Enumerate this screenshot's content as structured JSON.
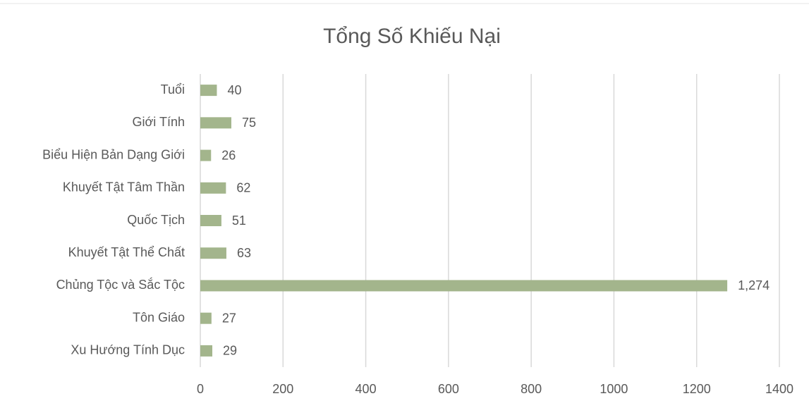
{
  "chart_data": {
    "type": "bar",
    "orientation": "horizontal",
    "title": "Tổng Số Khiếu Nại",
    "categories": [
      "Tuổi",
      "Giới Tính",
      "Biểu Hiện Bản Dạng Giới",
      "Khuyết Tật Tâm Thần",
      "Quốc Tịch",
      "Khuyết Tật Thể Chất",
      "Chủng Tộc và Sắc Tộc",
      "Tôn Giáo",
      "Xu Hướng Tính Dục"
    ],
    "values": [
      40,
      75,
      26,
      62,
      51,
      63,
      1274,
      27,
      29
    ],
    "value_labels": [
      "40",
      "75",
      "26",
      "62",
      "51",
      "63",
      "1,274",
      "27",
      "29"
    ],
    "color": "#a3b58c",
    "xlim": [
      0,
      1400
    ],
    "xticks": [
      0,
      200,
      400,
      600,
      800,
      1000,
      1200,
      1400
    ],
    "grid": true
  }
}
